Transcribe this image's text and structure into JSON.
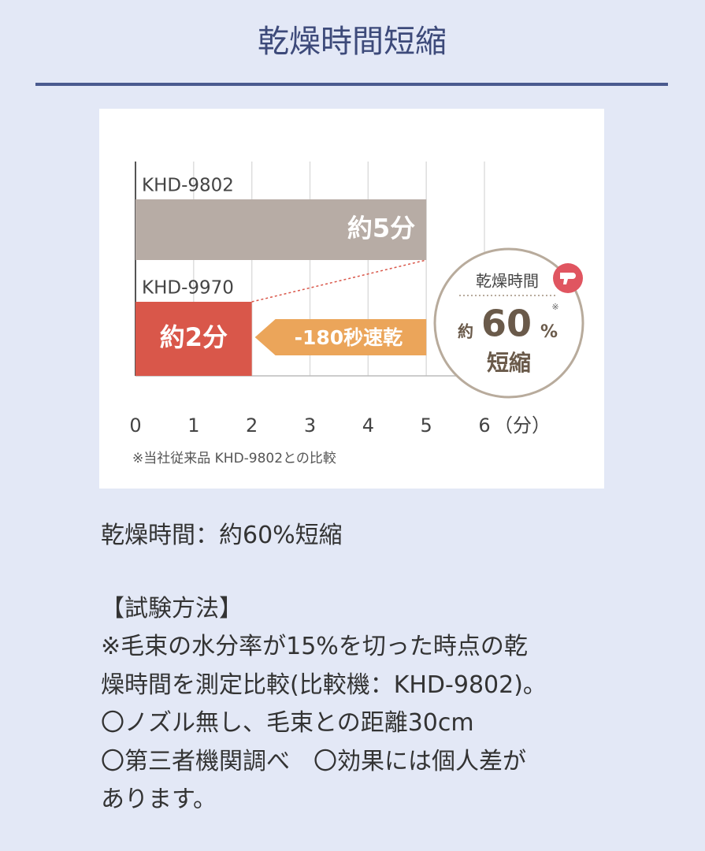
{
  "header": {
    "title": "乾燥時間短縮"
  },
  "chart_data": {
    "type": "barh",
    "categories": [
      "KHD-9802",
      "KHD-9970"
    ],
    "values": [
      5,
      2
    ],
    "value_labels": [
      "約5分",
      "約2分"
    ],
    "colors": [
      "#b7aca5",
      "#d9574a"
    ],
    "xlim": [
      0,
      6
    ],
    "xticks": [
      0,
      1,
      2,
      3,
      4,
      5,
      6
    ],
    "x_unit": "（分）",
    "grid": true,
    "annotations": {
      "arrow": "-180秒速乾",
      "footnote": "※当社従来品 KHD-9802との比較"
    },
    "badge": {
      "label": "乾燥時間",
      "mark": "※",
      "prefix": "約",
      "value": "60",
      "unit": "%",
      "suffix": "短縮"
    }
  },
  "body": {
    "summary": "乾燥時間：約60%短縮",
    "method_title": "【試験方法】",
    "method_lines": [
      "※毛束の水分率が15%を切った時点の乾",
      "燥時間を測定比較(比較機：KHD-9802)。",
      "〇ノズル無し、毛束との距離30cm",
      "〇第三者機関調べ　〇効果には個人差が",
      "あります。"
    ]
  }
}
